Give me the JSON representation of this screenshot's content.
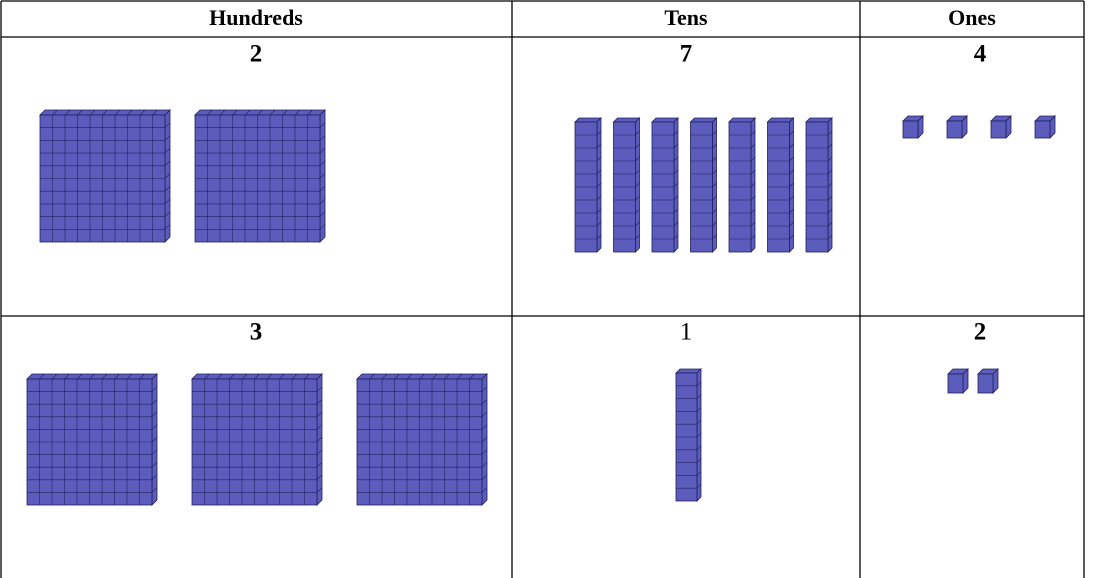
{
  "table": {
    "header": [
      "Hundreds",
      "Tens",
      "Ones"
    ],
    "rows": [
      [
        2,
        7,
        4
      ],
      [
        3,
        1,
        2
      ]
    ]
  }
}
